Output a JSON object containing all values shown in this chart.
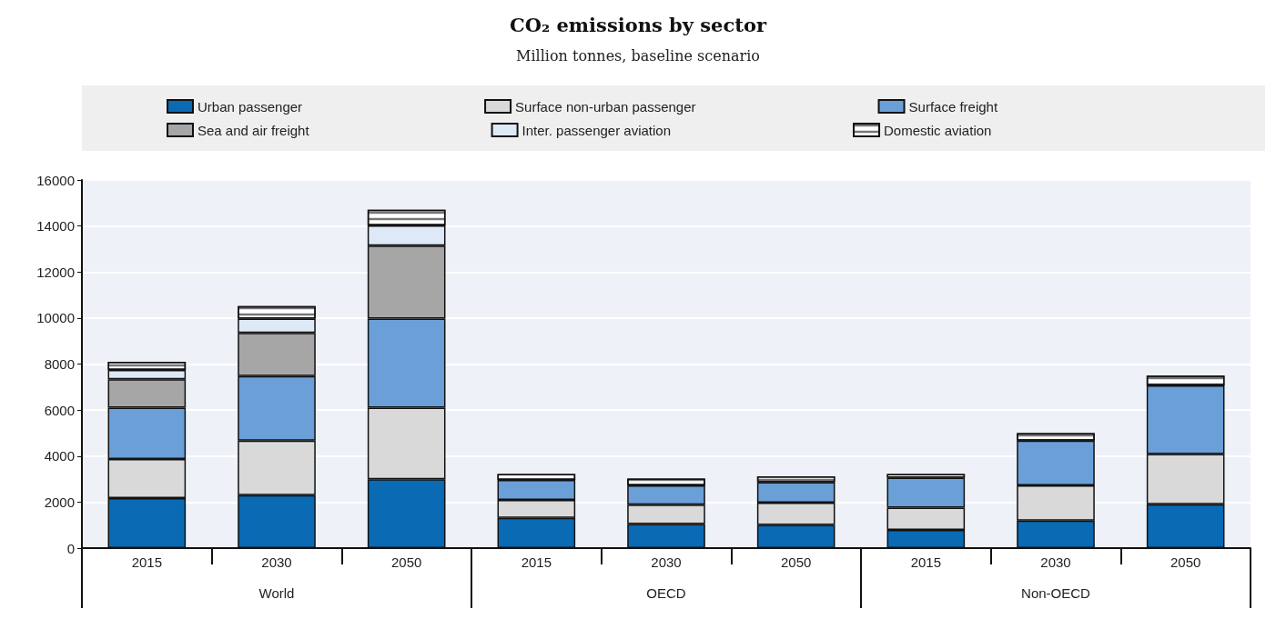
{
  "chart_data": {
    "type": "bar",
    "stacked": true,
    "title": "CO₂ emissions by sector",
    "subtitle": "Million tonnes, baseline scenario",
    "categories": [
      "2015",
      "2030",
      "2050",
      "2015",
      "2030",
      "2050",
      "2015",
      "2030",
      "2050"
    ],
    "annotations": [
      "World",
      "OECD",
      "Non-OECD"
    ],
    "series": [
      {
        "name": "Urban passenger",
        "color": "#0a6ab4",
        "values": [
          2170,
          2300,
          2990,
          1310,
          1050,
          1010,
          790,
          1200,
          1910
        ]
      },
      {
        "name": "Surface non-urban passenger",
        "color": "#d9d9d9",
        "values": [
          1700,
          2370,
          3110,
          780,
          840,
          970,
          970,
          1530,
          2180
        ]
      },
      {
        "name": "Surface freight",
        "color": "#6a9fd8",
        "values": [
          2230,
          2810,
          3880,
          870,
          840,
          880,
          1300,
          1940,
          2980
        ]
      },
      {
        "name": "Sea and air freight",
        "color": "#a6a6a6",
        "values": [
          1240,
          1870,
          3170,
          null,
          null,
          null,
          null,
          null,
          null
        ]
      },
      {
        "name": "Inter. passenger aviation",
        "color": "#dde9f7",
        "values": [
          400,
          630,
          870,
          null,
          null,
          null,
          null,
          null,
          null
        ]
      },
      {
        "name": "Domestic aviation",
        "color": "#ffffff",
        "values": [
          360,
          540,
          690,
          260,
          290,
          260,
          160,
          330,
          430
        ]
      }
    ],
    "ylim": [
      0,
      16000
    ],
    "yticks": [
      0,
      2000,
      4000,
      6000,
      8000,
      10000,
      12000,
      14000,
      16000
    ],
    "grid": "y",
    "legend": "top"
  }
}
